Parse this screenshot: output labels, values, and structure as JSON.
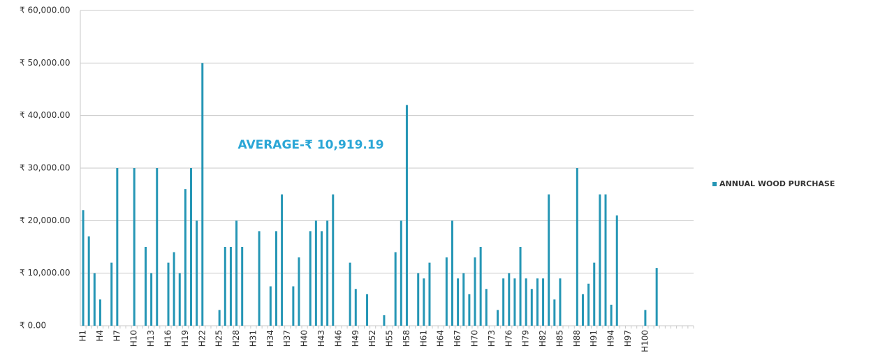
{
  "chart_data": {
    "type": "bar",
    "categories": [
      "H1",
      null,
      null,
      "H4",
      null,
      null,
      "H7",
      null,
      null,
      "H10",
      null,
      null,
      "H13",
      null,
      null,
      "H16",
      null,
      null,
      "H19",
      null,
      null,
      "H22",
      null,
      null,
      "H25",
      null,
      null,
      "H28",
      null,
      null,
      "H31",
      null,
      null,
      "H34",
      null,
      null,
      "H37",
      null,
      null,
      "H40",
      null,
      null,
      "H43",
      null,
      null,
      "H46",
      null,
      null,
      "H49",
      null,
      null,
      "H52",
      null,
      null,
      "H55",
      null,
      null,
      "H58",
      null,
      null,
      "H61",
      null,
      null,
      "H64",
      null,
      null,
      "H67",
      null,
      null,
      "H70",
      null,
      null,
      "H73",
      null,
      null,
      "H76",
      null,
      null,
      "H79",
      null,
      null,
      "H82",
      null,
      null,
      "H85",
      null,
      null,
      "H88",
      null,
      null,
      "H91",
      null,
      null,
      "H94",
      null,
      null,
      "H97",
      null,
      null,
      "H100",
      null,
      null,
      null,
      null,
      null,
      null,
      null,
      null
    ],
    "series": [
      {
        "name": "ANNUAL WOOD PURCHASE",
        "color": "#2596b5",
        "values": [
          22000,
          17000,
          10000,
          5000,
          0,
          12000,
          30000,
          0,
          0,
          30000,
          0,
          15000,
          10000,
          30000,
          0,
          12000,
          14000,
          10000,
          26000,
          30000,
          20000,
          50000,
          0,
          0,
          3000,
          15000,
          15000,
          20000,
          15000,
          0,
          0,
          18000,
          0,
          7500,
          18000,
          25000,
          0,
          7500,
          13000,
          0,
          18000,
          20000,
          18000,
          20000,
          25000,
          0,
          0,
          12000,
          7000,
          0,
          6000,
          0,
          0,
          2000,
          0,
          14000,
          20000,
          42000,
          0,
          10000,
          9000,
          12000,
          0,
          0,
          13000,
          20000,
          9000,
          10000,
          6000,
          13000,
          15000,
          7000,
          0,
          3000,
          9000,
          10000,
          9000,
          15000,
          9000,
          7000,
          9000,
          9000,
          25000,
          5000,
          9000,
          0,
          0,
          30000,
          6000,
          8000,
          12000,
          25000,
          25000,
          4000,
          21000,
          0,
          0,
          0,
          0,
          3000,
          0,
          11000,
          0,
          0,
          0,
          0,
          0,
          0
        ]
      }
    ],
    "annotation": "AVERAGE-₹ 10,919.19",
    "ylim": [
      0,
      60000
    ],
    "yticks": [
      {
        "value": 0,
        "label": "₹ 0.00"
      },
      {
        "value": 10000,
        "label": "₹ 10,000.00"
      },
      {
        "value": 20000,
        "label": "₹ 20,000.00"
      },
      {
        "value": 30000,
        "label": "₹ 30,000.00"
      },
      {
        "value": 40000,
        "label": "₹ 40,000.00"
      },
      {
        "value": 50000,
        "label": "₹ 50,000.00"
      },
      {
        "value": 60000,
        "label": "₹ 60,000.00"
      }
    ],
    "grid": true,
    "legend": "right"
  }
}
